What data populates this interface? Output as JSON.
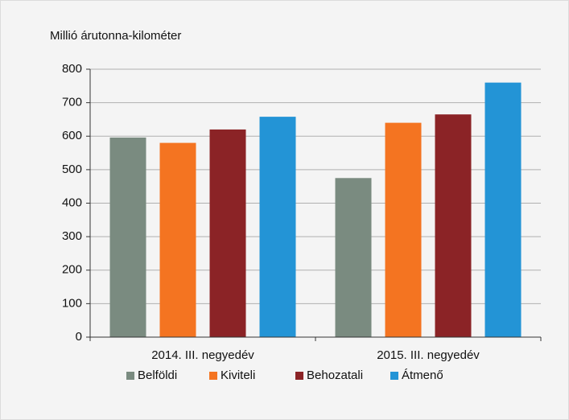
{
  "chart_data": {
    "type": "bar",
    "y_axis_label": "Millió árutonna-kilométer",
    "categories": [
      "2014. III. negyedév",
      "2015. III. negyedév"
    ],
    "series": [
      {
        "name": "Belföldi",
        "color": "#7a8b80",
        "values": [
          596,
          475
        ]
      },
      {
        "name": "Kiviteli",
        "color": "#f47421",
        "values": [
          580,
          640
        ]
      },
      {
        "name": "Behozatali",
        "color": "#8b2326",
        "values": [
          620,
          665
        ]
      },
      {
        "name": "Átmenő",
        "color": "#2394d6",
        "values": [
          658,
          760
        ]
      }
    ],
    "ylim": [
      0,
      800
    ],
    "yticks": [
      0,
      100,
      200,
      300,
      400,
      500,
      600,
      700,
      800
    ],
    "grid": true,
    "legend": "bottom"
  }
}
